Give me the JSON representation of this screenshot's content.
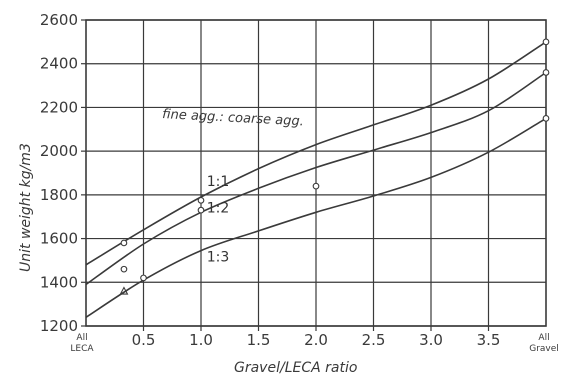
{
  "chart_data": {
    "type": "line",
    "xlabel": "Gravel/LECA ratio",
    "ylabel": "Unit weight kg/m3",
    "annotation": "fine agg.: coarse agg.",
    "xlim": [
      0,
      4
    ],
    "ylim": [
      1200,
      2600
    ],
    "x_ticks": [
      "0.5",
      "1.0",
      "1.5",
      "2.0",
      "2.5",
      "3.0",
      "3.5"
    ],
    "x_tick_values": [
      0.5,
      1.0,
      1.5,
      2.0,
      2.5,
      3.0,
      3.5
    ],
    "x_end_labels": {
      "left": [
        "All",
        "LECA"
      ],
      "right": [
        "All",
        "Gravel"
      ]
    },
    "y_ticks": [
      1200,
      1400,
      1600,
      1800,
      2000,
      2200,
      2400,
      2600
    ],
    "grid": true,
    "line_color": "#3a3a3a",
    "series": [
      {
        "name": "1:1",
        "x": [
          0,
          0.5,
          1.0,
          1.5,
          2.0,
          2.5,
          3.0,
          3.5,
          4.0
        ],
        "values": [
          1480,
          1640,
          1790,
          1920,
          2030,
          2120,
          2210,
          2330,
          2500
        ],
        "points": [
          {
            "x": 0.33,
            "y": 1580,
            "marker": "circle"
          },
          {
            "x": 1.0,
            "y": 1775,
            "marker": "circle"
          },
          {
            "x": 4.0,
            "y": 2500,
            "marker": "circle"
          }
        ]
      },
      {
        "name": "1:2",
        "x": [
          0,
          0.5,
          1.0,
          1.5,
          2.0,
          2.5,
          3.0,
          3.5,
          4.0
        ],
        "values": [
          1390,
          1575,
          1720,
          1830,
          1925,
          2005,
          2085,
          2185,
          2360
        ],
        "points": [
          {
            "x": 0.33,
            "y": 1460,
            "marker": "circle"
          },
          {
            "x": 1.0,
            "y": 1730,
            "marker": "circle"
          },
          {
            "x": 2.0,
            "y": 1840,
            "marker": "circle"
          },
          {
            "x": 4.0,
            "y": 2360,
            "marker": "circle"
          }
        ]
      },
      {
        "name": "1:3",
        "x": [
          0,
          0.5,
          1.0,
          1.5,
          2.0,
          2.5,
          3.0,
          3.5,
          4.0
        ],
        "values": [
          1240,
          1410,
          1545,
          1635,
          1720,
          1795,
          1880,
          1995,
          2150
        ],
        "points": [
          {
            "x": 0.33,
            "y": 1360,
            "marker": "triangle"
          },
          {
            "x": 0.5,
            "y": 1420,
            "marker": "circle"
          },
          {
            "x": 4.0,
            "y": 2150,
            "marker": "circle"
          }
        ]
      }
    ]
  }
}
